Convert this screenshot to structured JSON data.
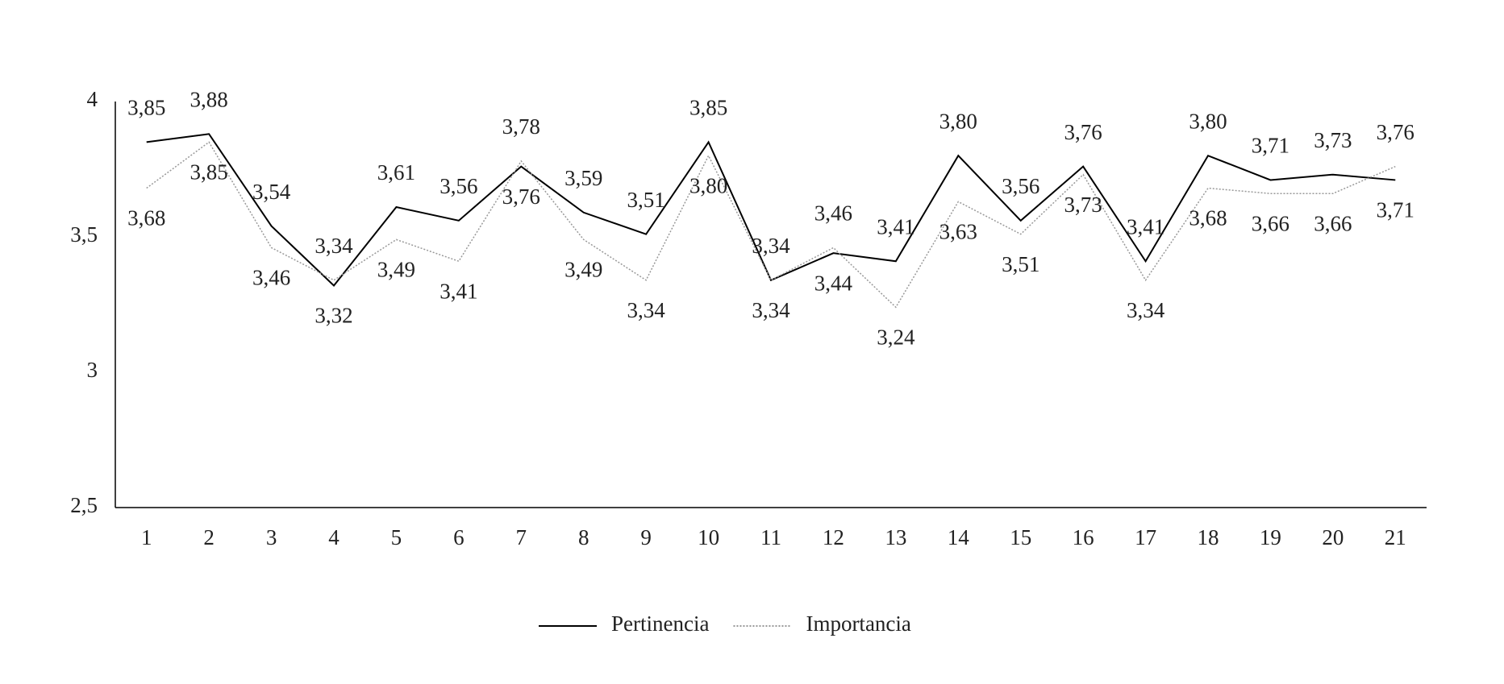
{
  "chart_data": {
    "type": "line",
    "categories": [
      "1",
      "2",
      "3",
      "4",
      "5",
      "6",
      "7",
      "8",
      "9",
      "10",
      "11",
      "12",
      "13",
      "14",
      "15",
      "16",
      "17",
      "18",
      "19",
      "20",
      "21"
    ],
    "series": [
      {
        "name": "Pertinencia",
        "color": "#000000",
        "line_style": "solid",
        "values": [
          3.85,
          3.88,
          3.54,
          3.32,
          3.61,
          3.56,
          3.76,
          3.59,
          3.51,
          3.85,
          3.34,
          3.44,
          3.41,
          3.8,
          3.56,
          3.76,
          3.41,
          3.8,
          3.71,
          3.73,
          3.71
        ],
        "value_labels": [
          "3,85",
          "3,88",
          "3,54",
          "3,32",
          "3,61",
          "3,56",
          "3,76",
          "3,59",
          "3,51",
          "3,85",
          "3,34",
          "3,44",
          "3,41",
          "3,80",
          "3,56",
          "3,76",
          "3,41",
          "3,80",
          "3,71",
          "3,73",
          "3,71"
        ]
      },
      {
        "name": "Importancia",
        "color": "#999999",
        "line_style": "dotted",
        "values": [
          3.68,
          3.85,
          3.46,
          3.34,
          3.49,
          3.41,
          3.78,
          3.49,
          3.34,
          3.8,
          3.34,
          3.46,
          3.24,
          3.63,
          3.51,
          3.73,
          3.34,
          3.68,
          3.66,
          3.66,
          3.76
        ],
        "value_labels": [
          "3,68",
          "3,85",
          "3,46",
          "3,34",
          "3,49",
          "3,41",
          "3,78",
          "3,49",
          "3,34",
          "3,80",
          "3,34",
          "3,46",
          "3,24",
          "3,63",
          "3,51",
          "3,73",
          "3,34",
          "3,68",
          "3,66",
          "3,66",
          "3,76"
        ]
      }
    ],
    "ylim": [
      2.5,
      4
    ],
    "yticks": [
      {
        "value": 2.5,
        "label": "2,5"
      },
      3,
      {
        "value": 3.5,
        "label": "3,5"
      },
      4
    ],
    "grid": false,
    "legend": "bottom"
  }
}
